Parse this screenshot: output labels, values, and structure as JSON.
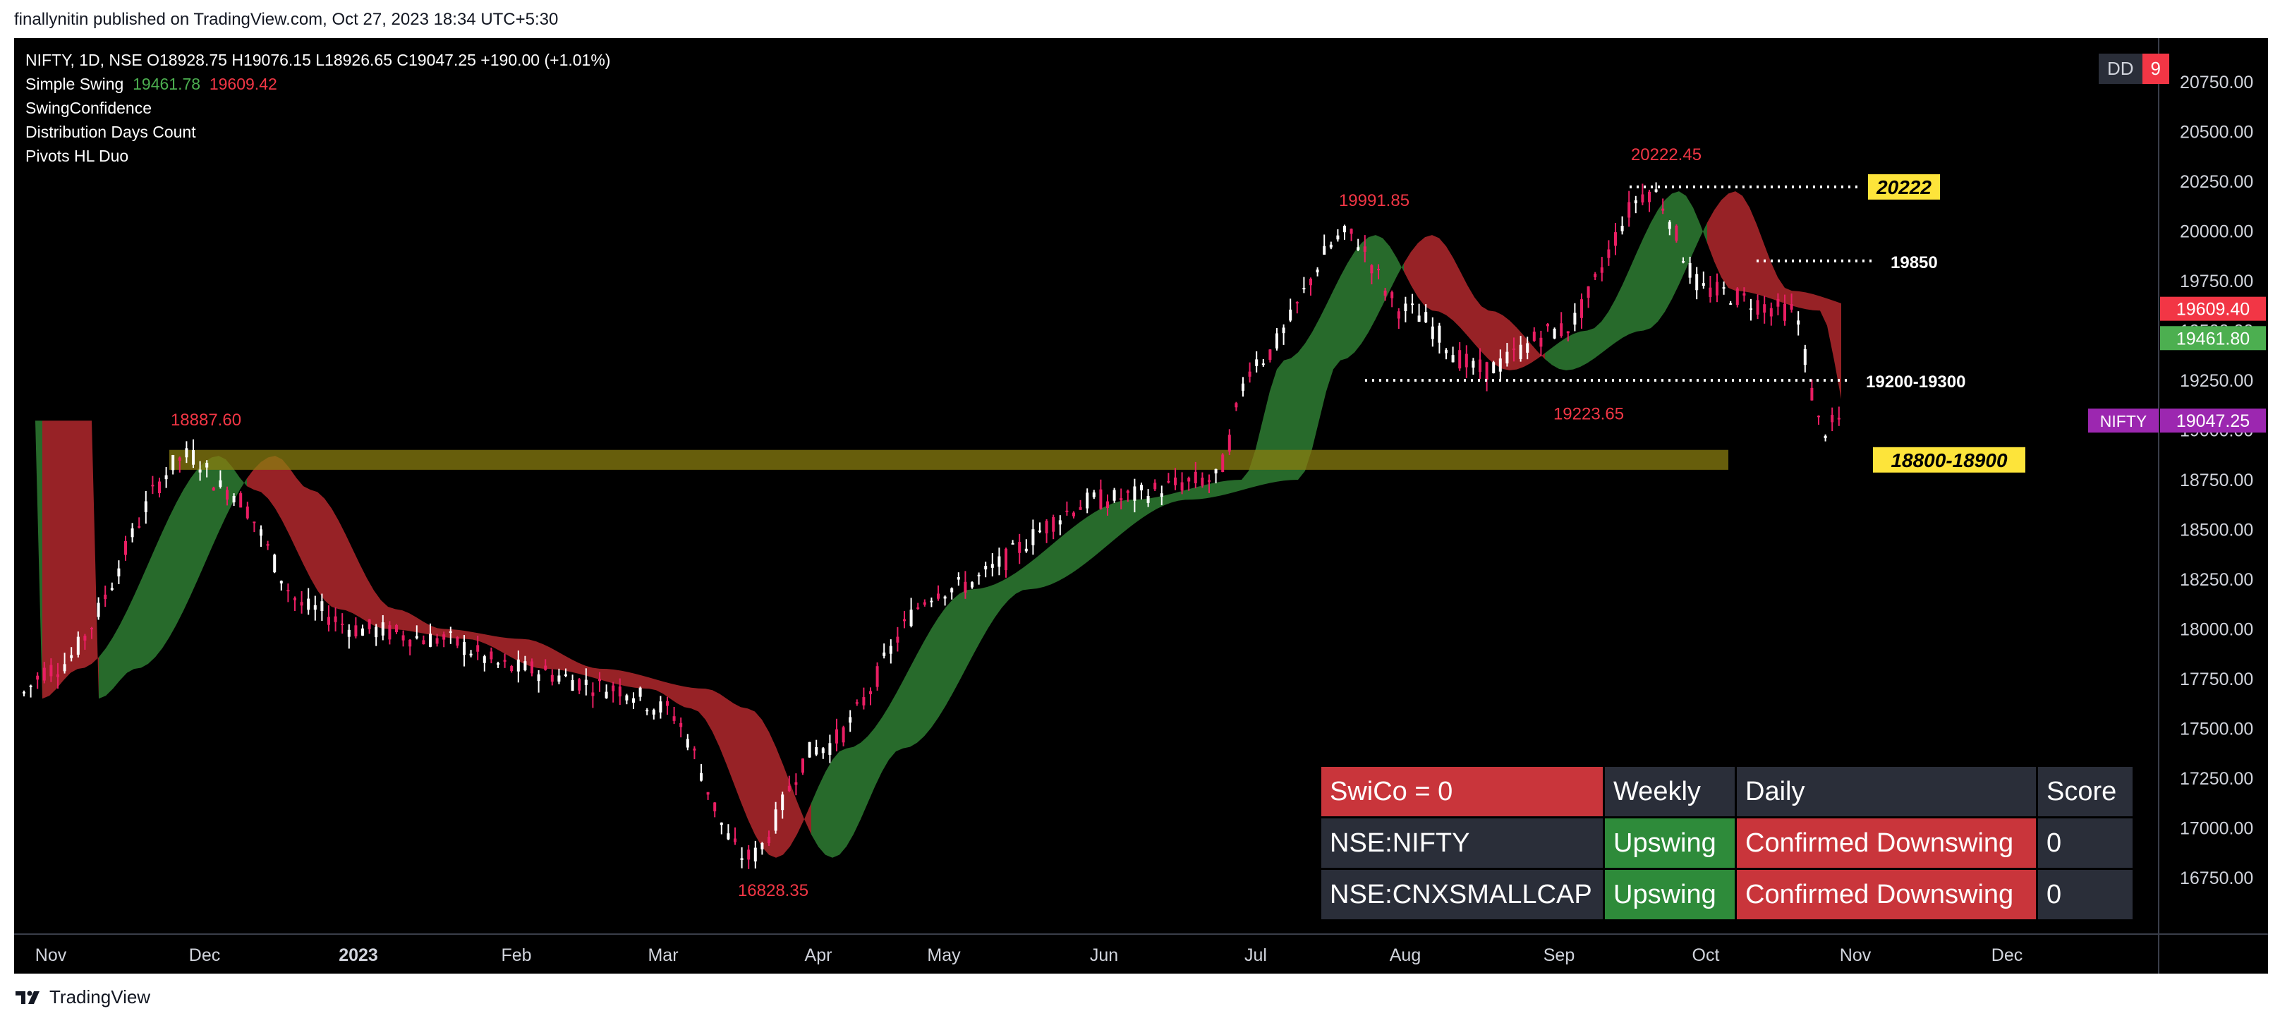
{
  "publisher": "finallynitin published on TradingView.com, Oct 27, 2023 18:34 UTC+5:30",
  "footer_brand": "TradingView",
  "legend": {
    "symbol_line": "NIFTY, 1D, NSE  O18928.75  H19076.15  L18926.65  C19047.25  +190.00 (+1.01%)",
    "simple_swing": "Simple Swing",
    "simple_swing_v1": "19461.78",
    "simple_swing_v2": "19609.42",
    "ind2": "SwingConfidence",
    "ind3": "Distribution Days Count",
    "ind4": "Pivots HL Duo"
  },
  "dd_badge": {
    "label": "DD",
    "count": "9"
  },
  "colors": {
    "bull": "#4caf50",
    "bear": "#f23645",
    "zone": "#8a7d10",
    "label_yellow": "#fde43a",
    "ribbon_green": "#2e7d32",
    "ribbon_red": "#b2282d"
  },
  "chart_data": {
    "type": "candlestick",
    "symbol": "NIFTY",
    "timeframe": "1D",
    "exchange": "NSE",
    "ohlc_last": {
      "open": 18928.75,
      "high": 19076.15,
      "low": 18926.65,
      "close": 19047.25,
      "change": "+190.00 (+1.01%)"
    },
    "ylim": [
      16500,
      20900
    ],
    "y_ticks": [
      "20750.00",
      "20500.00",
      "20250.00",
      "20000.00",
      "19750.00",
      "19500.00",
      "19250.00",
      "19000.00",
      "18750.00",
      "18500.00",
      "18250.00",
      "18000.00",
      "17750.00",
      "17500.00",
      "17250.00",
      "17000.00",
      "16750.00"
    ],
    "x_ticks": [
      "Nov",
      "Dec",
      "2023",
      "Feb",
      "Mar",
      "Apr",
      "May",
      "Jun",
      "Jul",
      "Aug",
      "Sep",
      "Oct",
      "Nov",
      "Dec"
    ],
    "price_path": [
      {
        "t": "Nov",
        "y": 17750
      },
      {
        "t": "Dec",
        "y": 18880
      },
      {
        "t": "2023",
        "y": 18050
      },
      {
        "t": "Feb",
        "y": 17800
      },
      {
        "t": "Mar",
        "y": 17100
      },
      {
        "t": "Apr",
        "y": 17380
      },
      {
        "t": "May",
        "y": 18300
      },
      {
        "t": "Jun",
        "y": 18600
      },
      {
        "t": "Jul",
        "y": 19400
      },
      {
        "t": "Aug",
        "y": 19700
      },
      {
        "t": "Sep",
        "y": 19500
      },
      {
        "t": "Oct",
        "y": 19650
      },
      {
        "t": "Nov",
        "y": 19100
      }
    ],
    "pivots": [
      {
        "label": "18887.60",
        "t": "Dec",
        "y": 18887.6,
        "pos": "above"
      },
      {
        "label": "16828.35",
        "t": "Apr",
        "y": 16828.35,
        "pos": "below"
      },
      {
        "label": "19991.85",
        "t": "Aug",
        "y": 19991.85,
        "pos": "above"
      },
      {
        "label": "19223.65",
        "t": "Sep",
        "y": 19223.65,
        "pos": "below"
      },
      {
        "label": "20222.45",
        "t": "Sep",
        "y": 20222.45,
        "pos": "above"
      }
    ],
    "levels": [
      {
        "label": "20222",
        "y": 20222,
        "style": "yellow"
      },
      {
        "label": "19850",
        "y": 19850,
        "style": "white"
      },
      {
        "label": "19200-19300",
        "y": 19250,
        "style": "white"
      }
    ],
    "zone": {
      "label": "18800-18900",
      "y_from": 18800,
      "y_to": 18900
    },
    "price_tags": [
      {
        "label": "19609.40",
        "y": 19609.4,
        "color": "#f23645"
      },
      {
        "label": "19461.80",
        "y": 19461.8,
        "color": "#4caf50"
      },
      {
        "label": "19047.25",
        "y": 19047.25,
        "color": "#9c27b0",
        "name": "NIFTY"
      }
    ]
  },
  "table": {
    "header": [
      "SwiCo = 0",
      "Weekly",
      "Daily",
      "Score"
    ],
    "rows": [
      [
        "NSE:NIFTY",
        "Upswing",
        "Confirmed Downswing",
        "0"
      ],
      [
        "NSE:CNXSMALLCAP",
        "Upswing",
        "Confirmed Downswing",
        "0"
      ]
    ]
  }
}
